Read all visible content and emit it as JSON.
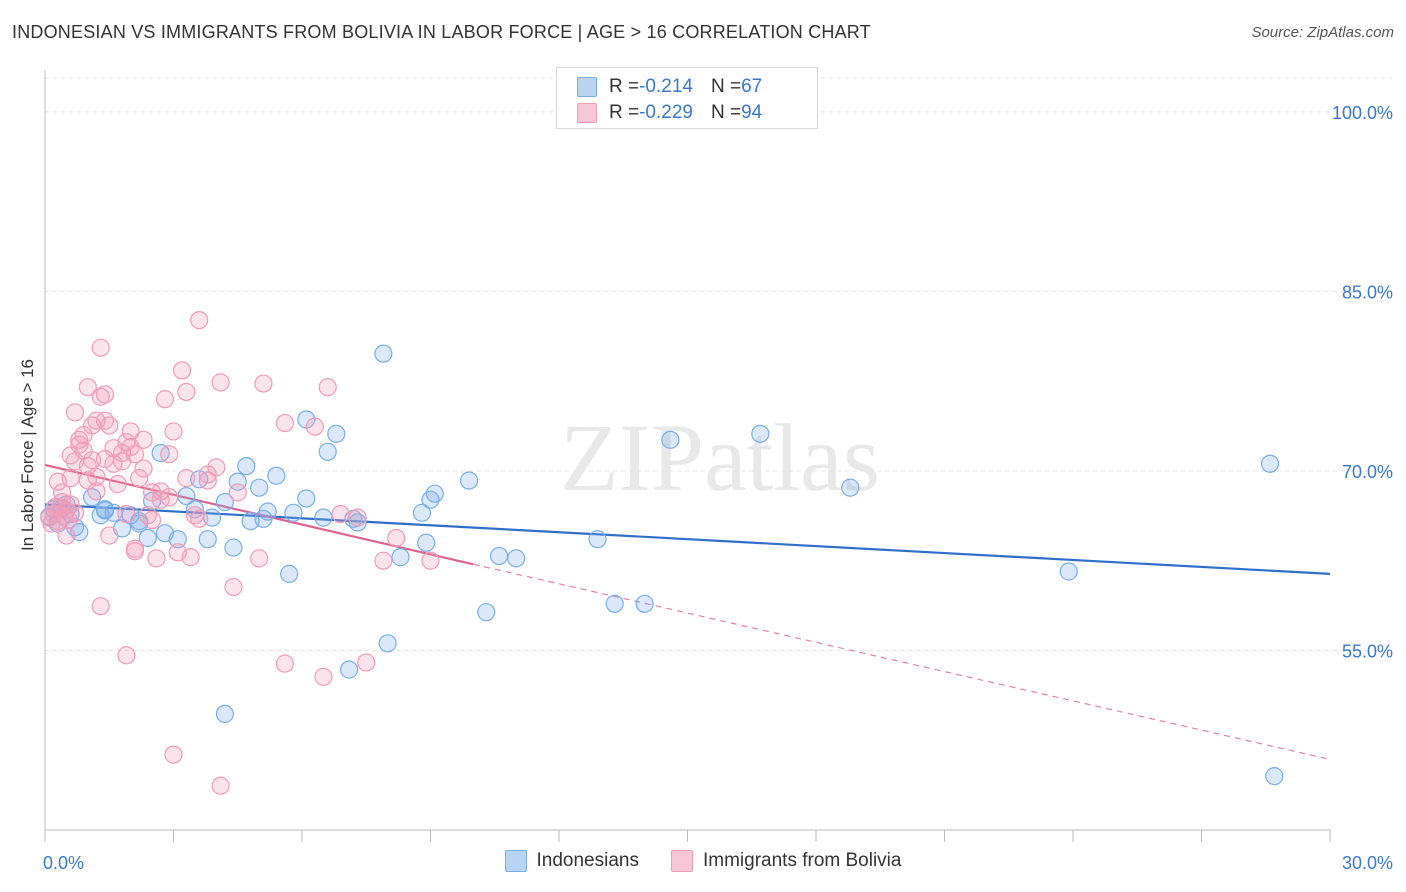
{
  "chart_data": {
    "type": "scatter",
    "title": "INDONESIAN VS IMMIGRANTS FROM BOLIVIA IN LABOR FORCE | AGE > 16 CORRELATION CHART",
    "source": "Source: ZipAtlas.com",
    "xlabel": "",
    "ylabel": "In Labor Force | Age > 16",
    "xlim": [
      0,
      30
    ],
    "ylim": [
      40,
      103.5
    ],
    "x_tick_labels": {
      "min": "0.0%",
      "max": "30.0%"
    },
    "y_ticks": [
      {
        "value": 100,
        "label": "100.0%"
      },
      {
        "value": 85,
        "label": "85.0%"
      },
      {
        "value": 70,
        "label": "70.0%"
      },
      {
        "value": 55,
        "label": "55.0%"
      }
    ],
    "grid": true,
    "watermark": "ZIPatlas",
    "legend": {
      "r_prefix": "R = ",
      "n_prefix": "N = ",
      "entries": [
        {
          "r": "-0.214",
          "n": "67"
        },
        {
          "r": "-0.229",
          "n": "94"
        }
      ]
    },
    "series": [
      {
        "name": "Indonesians",
        "color": "#7aaee8",
        "line_color": "#2f6fcb",
        "trend": {
          "x0": 0,
          "y0": 67.2,
          "x1": 30,
          "y1": 61.4
        },
        "points": [
          [
            0.1,
            66.2
          ],
          [
            0.2,
            66.8
          ],
          [
            0.3,
            65.6
          ],
          [
            0.4,
            66.9
          ],
          [
            0.5,
            67.2
          ],
          [
            0.6,
            66.4
          ],
          [
            0.7,
            65.3
          ],
          [
            0.8,
            64.9
          ],
          [
            1.1,
            67.8
          ],
          [
            1.3,
            66.3
          ],
          [
            1.4,
            66.7
          ],
          [
            1.6,
            66.5
          ],
          [
            1.8,
            65.2
          ],
          [
            2.0,
            66.3
          ],
          [
            2.2,
            65.6
          ],
          [
            2.4,
            64.4
          ],
          [
            2.5,
            67.5
          ],
          [
            2.8,
            64.8
          ],
          [
            2.7,
            71.5
          ],
          [
            3.1,
            64.3
          ],
          [
            3.3,
            67.9
          ],
          [
            3.5,
            66.8
          ],
          [
            3.6,
            69.3
          ],
          [
            3.8,
            64.3
          ],
          [
            3.9,
            66.1
          ],
          [
            4.2,
            67.4
          ],
          [
            4.4,
            63.6
          ],
          [
            4.5,
            69.1
          ],
          [
            4.7,
            70.4
          ],
          [
            4.8,
            65.8
          ],
          [
            5.0,
            68.6
          ],
          [
            5.1,
            66.0
          ],
          [
            5.2,
            66.6
          ],
          [
            5.4,
            69.6
          ],
          [
            5.7,
            61.4
          ],
          [
            5.8,
            66.5
          ],
          [
            6.1,
            67.7
          ],
          [
            6.1,
            74.3
          ],
          [
            6.5,
            66.1
          ],
          [
            6.6,
            71.6
          ],
          [
            6.8,
            73.1
          ],
          [
            7.2,
            66.0
          ],
          [
            7.3,
            65.7
          ],
          [
            7.9,
            79.8
          ],
          [
            8.3,
            62.8
          ],
          [
            8.8,
            66.5
          ],
          [
            8.9,
            64.0
          ],
          [
            9.0,
            67.6
          ],
          [
            9.1,
            68.1
          ],
          [
            9.9,
            69.2
          ],
          [
            10.3,
            58.2
          ],
          [
            10.6,
            62.9
          ],
          [
            11.0,
            62.7
          ],
          [
            12.9,
            64.3
          ],
          [
            13.3,
            58.9
          ],
          [
            14.0,
            58.9
          ],
          [
            14.6,
            72.6
          ],
          [
            16.7,
            73.1
          ],
          [
            18.8,
            68.6
          ],
          [
            23.9,
            61.6
          ],
          [
            28.6,
            70.6
          ],
          [
            28.7,
            44.5
          ],
          [
            7.1,
            53.4
          ],
          [
            8.0,
            55.6
          ],
          [
            4.2,
            49.7
          ],
          [
            1.4,
            66.8
          ],
          [
            2.2,
            65.8
          ]
        ]
      },
      {
        "name": "Immigrants from Bolivia",
        "color": "#f29bb8",
        "line_color": "#e0628f",
        "trend": {
          "x0": 0,
          "y0": 70.5,
          "x1": 10,
          "y1": 62.2
        },
        "trend_dash_to": {
          "x": 30,
          "y": 45.9
        },
        "points": [
          [
            0.1,
            66.1
          ],
          [
            0.15,
            65.6
          ],
          [
            0.2,
            66.4
          ],
          [
            0.25,
            67.0
          ],
          [
            0.3,
            65.8
          ],
          [
            0.35,
            66.9
          ],
          [
            0.4,
            67.4
          ],
          [
            0.45,
            66.2
          ],
          [
            0.5,
            66.7
          ],
          [
            0.55,
            65.9
          ],
          [
            0.6,
            67.2
          ],
          [
            0.7,
            66.5
          ],
          [
            0.3,
            69.1
          ],
          [
            0.4,
            68.2
          ],
          [
            0.5,
            64.6
          ],
          [
            0.6,
            69.4
          ],
          [
            0.7,
            70.8
          ],
          [
            0.7,
            74.9
          ],
          [
            0.8,
            72.2
          ],
          [
            0.8,
            72.6
          ],
          [
            0.9,
            71.7
          ],
          [
            1.0,
            69.2
          ],
          [
            1.0,
            70.4
          ],
          [
            1.0,
            77.0
          ],
          [
            1.1,
            73.8
          ],
          [
            1.1,
            70.9
          ],
          [
            1.2,
            74.2
          ],
          [
            1.2,
            69.5
          ],
          [
            1.3,
            76.2
          ],
          [
            1.3,
            80.3
          ],
          [
            1.4,
            76.4
          ],
          [
            1.4,
            71.0
          ],
          [
            1.5,
            64.6
          ],
          [
            1.5,
            73.8
          ],
          [
            1.6,
            71.9
          ],
          [
            1.6,
            70.6
          ],
          [
            1.7,
            68.9
          ],
          [
            1.8,
            70.8
          ],
          [
            1.8,
            71.5
          ],
          [
            1.9,
            72.4
          ],
          [
            1.9,
            66.4
          ],
          [
            2.0,
            73.3
          ],
          [
            2.0,
            72.0
          ],
          [
            2.1,
            71.4
          ],
          [
            2.1,
            63.3
          ],
          [
            2.2,
            69.4
          ],
          [
            2.3,
            72.6
          ],
          [
            2.3,
            70.2
          ],
          [
            2.4,
            66.3
          ],
          [
            2.5,
            68.2
          ],
          [
            2.5,
            65.9
          ],
          [
            2.6,
            62.7
          ],
          [
            2.7,
            68.3
          ],
          [
            2.8,
            76.0
          ],
          [
            2.9,
            71.4
          ],
          [
            2.9,
            67.8
          ],
          [
            3.0,
            73.3
          ],
          [
            3.1,
            63.2
          ],
          [
            3.2,
            78.4
          ],
          [
            3.3,
            69.4
          ],
          [
            3.3,
            76.6
          ],
          [
            3.4,
            62.8
          ],
          [
            3.5,
            66.3
          ],
          [
            3.6,
            82.6
          ],
          [
            3.6,
            66.0
          ],
          [
            3.8,
            69.7
          ],
          [
            4.0,
            70.3
          ],
          [
            4.1,
            77.4
          ],
          [
            4.4,
            60.3
          ],
          [
            4.5,
            68.2
          ],
          [
            5.0,
            62.7
          ],
          [
            5.1,
            77.3
          ],
          [
            5.6,
            74.0
          ],
          [
            5.6,
            53.9
          ],
          [
            6.3,
            73.7
          ],
          [
            6.5,
            52.8
          ],
          [
            6.6,
            77.0
          ],
          [
            6.9,
            66.4
          ],
          [
            7.3,
            66.1
          ],
          [
            7.5,
            54.0
          ],
          [
            7.9,
            62.5
          ],
          [
            8.2,
            64.4
          ],
          [
            9.0,
            62.5
          ],
          [
            1.3,
            58.7
          ],
          [
            1.9,
            54.6
          ],
          [
            3.0,
            46.3
          ],
          [
            4.1,
            43.7
          ],
          [
            2.1,
            63.5
          ],
          [
            1.2,
            68.3
          ],
          [
            0.9,
            73.0
          ],
          [
            0.6,
            71.3
          ],
          [
            1.4,
            74.2
          ],
          [
            2.7,
            67.6
          ],
          [
            3.8,
            69.2
          ]
        ]
      }
    ]
  }
}
